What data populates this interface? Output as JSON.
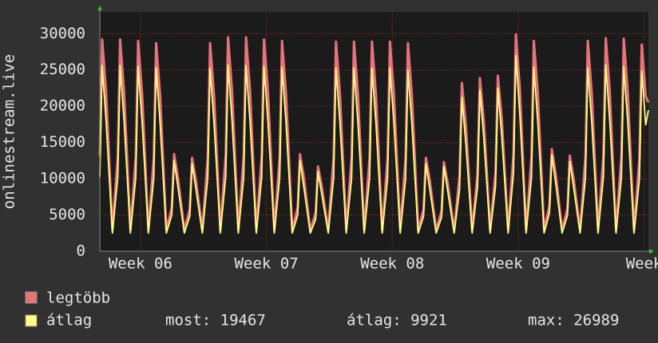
{
  "chart_data": {
    "type": "line",
    "y_label": "onlinestream.live",
    "x": [
      0,
      0.13,
      0.35,
      0.7,
      1,
      1.13,
      1.35,
      1.7,
      2,
      2.13,
      2.35,
      2.7,
      3,
      3.13,
      3.35,
      3.7,
      4,
      4.13,
      4.35,
      4.7,
      5,
      5.13,
      5.35,
      5.7,
      6,
      6.13,
      6.35,
      6.7,
      7,
      7.13,
      7.35,
      7.7,
      8,
      8.13,
      8.35,
      8.7,
      9,
      9.13,
      9.35,
      9.7,
      10,
      10.13,
      10.35,
      10.7,
      11,
      11.13,
      11.35,
      11.7,
      12,
      12.13,
      12.35,
      12.7,
      13,
      13.13,
      13.35,
      13.7,
      14,
      14.13,
      14.35,
      14.7,
      15,
      15.13,
      15.35,
      15.7,
      16,
      16.13,
      16.35,
      16.7,
      17,
      17.13,
      17.35,
      17.7,
      18,
      18.13,
      18.35,
      18.7,
      19,
      19.13,
      19.35,
      19.7,
      20,
      20.13,
      20.35,
      20.7,
      21,
      21.13,
      21.35,
      21.7,
      22,
      22.13,
      22.35,
      22.7,
      23,
      23.13,
      23.35,
      23.7,
      24,
      24.13,
      24.35,
      24.7,
      25,
      25.13,
      25.35,
      25.7,
      26,
      26.13,
      26.35,
      26.7,
      27,
      27.13,
      27.35,
      27.7,
      28,
      28.13,
      28.35,
      28.7,
      29,
      29.13,
      29.35,
      29.7,
      30,
      30.13,
      30.35,
      30.5
    ],
    "series": [
      {
        "name": "legtöbb",
        "color": "#e8737a",
        "values": [
          13140,
          29200,
          21900,
          2900,
          13140,
          29200,
          21900,
          2900,
          13050,
          29000,
          21750,
          2900,
          12915,
          28700,
          21525,
          2900,
          6030,
          13400,
          10050,
          2900,
          5805,
          12900,
          9675,
          2900,
          12915,
          28700,
          21525,
          2900,
          13275,
          29500,
          22125,
          2900,
          13275,
          29500,
          22125,
          2900,
          13140,
          29200,
          21900,
          2900,
          13050,
          29000,
          21750,
          2900,
          6030,
          13400,
          10050,
          2900,
          5265,
          11700,
          8775,
          2900,
          13005,
          28900,
          21675,
          2900,
          13005,
          28900,
          21675,
          2900,
          13005,
          28900,
          21675,
          2900,
          13005,
          28900,
          21675,
          2900,
          12915,
          28700,
          21525,
          2900,
          5805,
          12900,
          9675,
          2900,
          5535,
          12300,
          9225,
          2900,
          10440,
          23200,
          17400,
          2900,
          10755,
          23900,
          17925,
          2900,
          10890,
          24200,
          18150,
          2900,
          13455,
          29900,
          22425,
          2900,
          13050,
          29000,
          21750,
          2900,
          6345,
          14100,
          10575,
          2900,
          5940,
          13200,
          9900,
          2900,
          13050,
          29000,
          21750,
          2900,
          13230,
          29400,
          22050,
          2900,
          13185,
          29300,
          21975,
          2900,
          12825,
          28500,
          21375,
          20500
        ]
      },
      {
        "name": "átlag",
        "color": "#ffff80",
        "values": [
          10240,
          25600,
          17920,
          2500,
          10240,
          25600,
          17920,
          2500,
          10200,
          25500,
          17850,
          2500,
          10120,
          25300,
          17710,
          2500,
          5000,
          12500,
          8750,
          2500,
          4840,
          12100,
          8470,
          2500,
          10080,
          25200,
          17640,
          2500,
          10280,
          25700,
          17990,
          2500,
          10240,
          25600,
          17920,
          2500,
          10200,
          25500,
          17850,
          2500,
          10160,
          25400,
          17780,
          2500,
          5000,
          12500,
          8750,
          2500,
          4400,
          11000,
          7700,
          2500,
          10120,
          25300,
          17710,
          2500,
          10120,
          25300,
          17710,
          2500,
          10120,
          25300,
          17710,
          2500,
          10120,
          25300,
          17710,
          2500,
          10000,
          25000,
          17500,
          2500,
          4840,
          12100,
          8470,
          2500,
          4680,
          11700,
          8190,
          2500,
          8480,
          21200,
          14840,
          2500,
          8880,
          22200,
          15540,
          2500,
          9000,
          22500,
          15750,
          2500,
          10800,
          27000,
          18900,
          2500,
          10160,
          25400,
          17780,
          2500,
          5320,
          13300,
          9310,
          2500,
          4960,
          12400,
          8680,
          2500,
          10120,
          25300,
          17710,
          2500,
          10280,
          25700,
          17990,
          2500,
          10200,
          25500,
          17850,
          2500,
          9960,
          24900,
          17430,
          19467
        ]
      }
    ],
    "stats": [
      "most: 19467",
      "átlag: 9921",
      "max: 26989"
    ],
    "xlim": [
      0,
      30.5
    ],
    "xticks": [
      {
        "value": 2.26,
        "label": "Week 06"
      },
      {
        "value": 9.26,
        "label": "Week 07"
      },
      {
        "value": 16.26,
        "label": "Week 08"
      },
      {
        "value": 23.26,
        "label": "Week 09"
      },
      {
        "value": 30.26,
        "label": "Week"
      }
    ],
    "ylim": [
      0,
      33000
    ],
    "yticks": [
      0,
      5000,
      10000,
      15000,
      20000,
      25000,
      30000
    ],
    "grid": true
  }
}
